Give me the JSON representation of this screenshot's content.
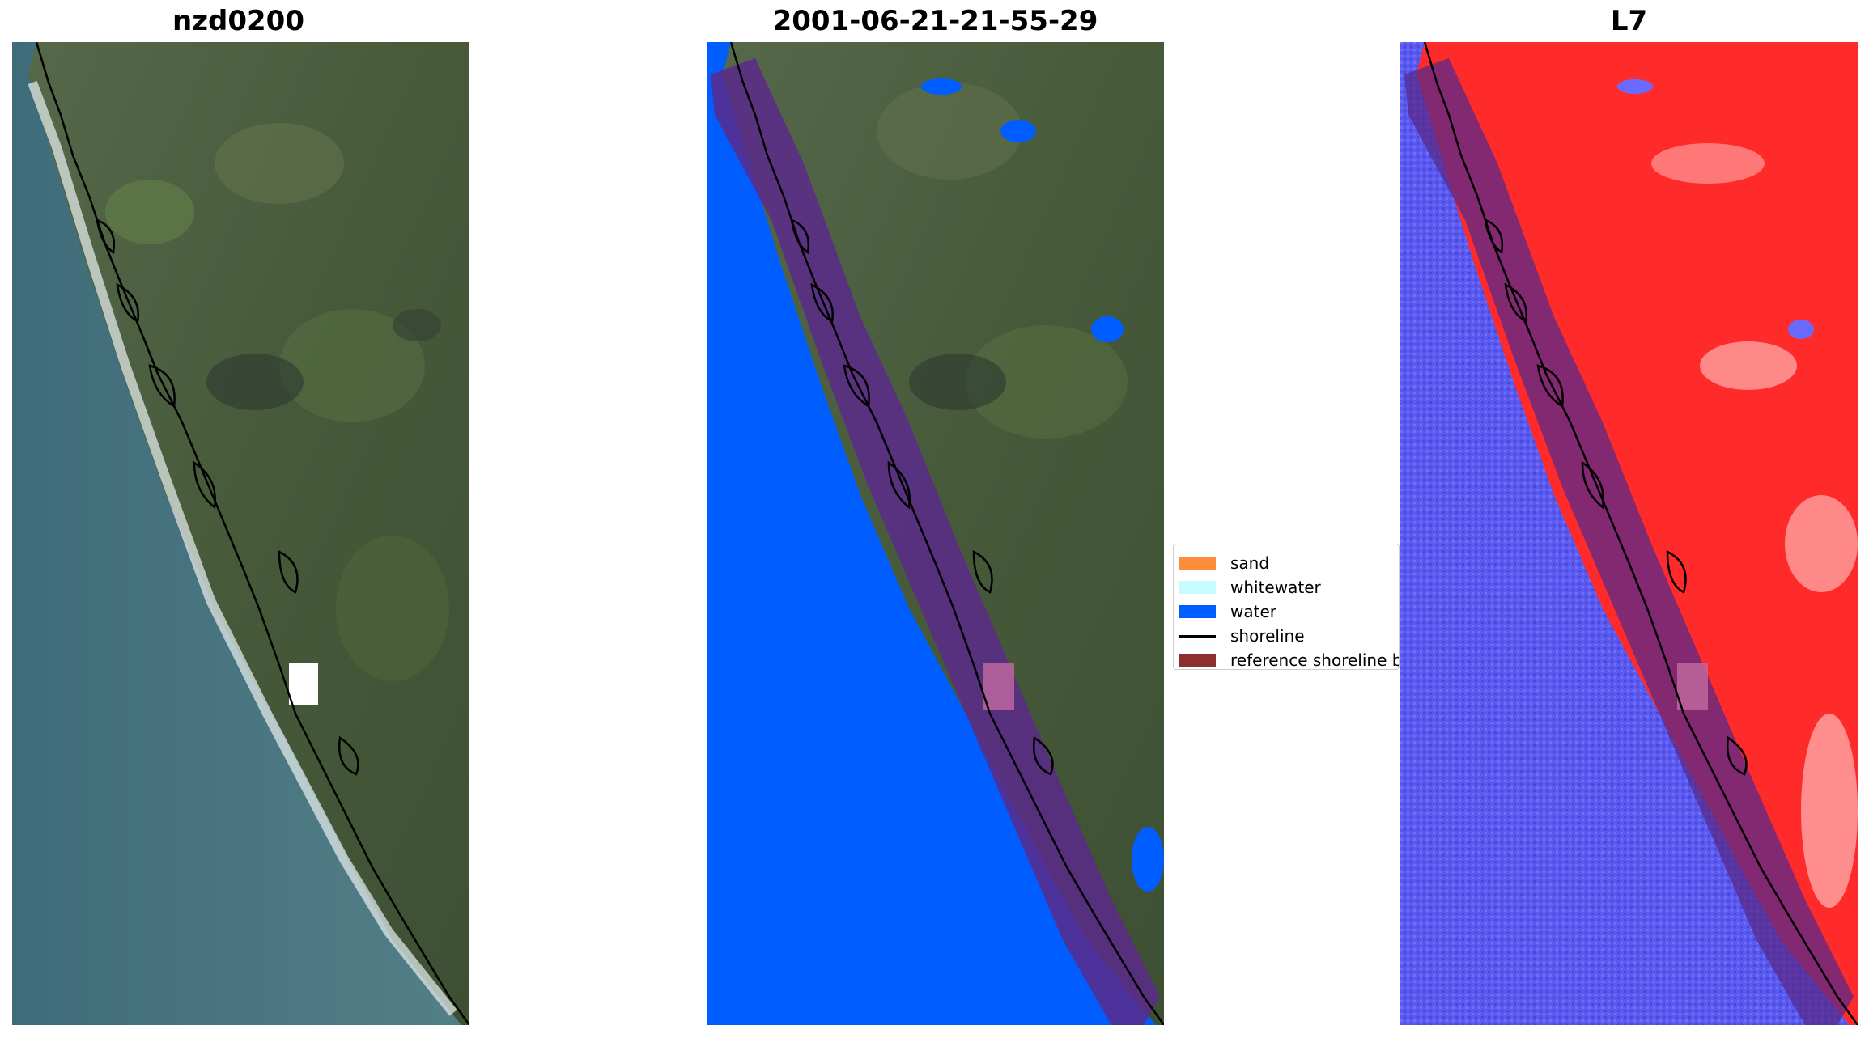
{
  "panels": [
    {
      "title": "nzd0200"
    },
    {
      "title": "2001-06-21-21-55-29"
    },
    {
      "title": "L7"
    }
  ],
  "legend": {
    "items": [
      {
        "label": "sand",
        "color": "#ff8c3a",
        "kind": "patch"
      },
      {
        "label": "whitewater",
        "color": "#c8fbff",
        "kind": "patch"
      },
      {
        "label": "water",
        "color": "#005dff",
        "kind": "patch"
      },
      {
        "label": "shoreline",
        "color": "#000000",
        "kind": "line"
      },
      {
        "label": "reference shoreline b",
        "color": "#8b2f2f",
        "kind": "patch"
      }
    ]
  },
  "colors": {
    "ocean_rgb": "#4a7582",
    "land_rgb": "#4a5e3c",
    "water_class": "#005dff",
    "buffer": "#5a2a8a",
    "land_index": "#ff2a2a",
    "water_index": "#4a4aee"
  }
}
